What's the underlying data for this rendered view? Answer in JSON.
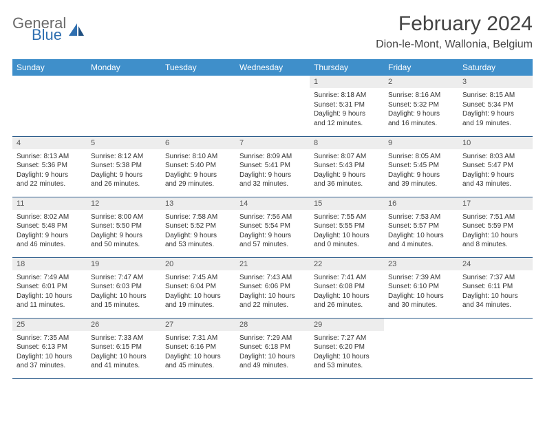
{
  "logo": {
    "general": "General",
    "blue": "Blue"
  },
  "title": "February 2024",
  "location": "Dion-le-Mont, Wallonia, Belgium",
  "colors": {
    "header_bg": "#3f8fca",
    "header_text": "#ffffff",
    "date_bg": "#ededed",
    "border": "#2a5a8a",
    "logo_gray": "#6a6a6a",
    "logo_blue": "#2f6fb0"
  },
  "day_names": [
    "Sunday",
    "Monday",
    "Tuesday",
    "Wednesday",
    "Thursday",
    "Friday",
    "Saturday"
  ],
  "weeks": [
    [
      {
        "date": "",
        "sunrise": "",
        "sunset": "",
        "daylight1": "",
        "daylight2": ""
      },
      {
        "date": "",
        "sunrise": "",
        "sunset": "",
        "daylight1": "",
        "daylight2": ""
      },
      {
        "date": "",
        "sunrise": "",
        "sunset": "",
        "daylight1": "",
        "daylight2": ""
      },
      {
        "date": "",
        "sunrise": "",
        "sunset": "",
        "daylight1": "",
        "daylight2": ""
      },
      {
        "date": "1",
        "sunrise": "Sunrise: 8:18 AM",
        "sunset": "Sunset: 5:31 PM",
        "daylight1": "Daylight: 9 hours",
        "daylight2": "and 12 minutes."
      },
      {
        "date": "2",
        "sunrise": "Sunrise: 8:16 AM",
        "sunset": "Sunset: 5:32 PM",
        "daylight1": "Daylight: 9 hours",
        "daylight2": "and 16 minutes."
      },
      {
        "date": "3",
        "sunrise": "Sunrise: 8:15 AM",
        "sunset": "Sunset: 5:34 PM",
        "daylight1": "Daylight: 9 hours",
        "daylight2": "and 19 minutes."
      }
    ],
    [
      {
        "date": "4",
        "sunrise": "Sunrise: 8:13 AM",
        "sunset": "Sunset: 5:36 PM",
        "daylight1": "Daylight: 9 hours",
        "daylight2": "and 22 minutes."
      },
      {
        "date": "5",
        "sunrise": "Sunrise: 8:12 AM",
        "sunset": "Sunset: 5:38 PM",
        "daylight1": "Daylight: 9 hours",
        "daylight2": "and 26 minutes."
      },
      {
        "date": "6",
        "sunrise": "Sunrise: 8:10 AM",
        "sunset": "Sunset: 5:40 PM",
        "daylight1": "Daylight: 9 hours",
        "daylight2": "and 29 minutes."
      },
      {
        "date": "7",
        "sunrise": "Sunrise: 8:09 AM",
        "sunset": "Sunset: 5:41 PM",
        "daylight1": "Daylight: 9 hours",
        "daylight2": "and 32 minutes."
      },
      {
        "date": "8",
        "sunrise": "Sunrise: 8:07 AM",
        "sunset": "Sunset: 5:43 PM",
        "daylight1": "Daylight: 9 hours",
        "daylight2": "and 36 minutes."
      },
      {
        "date": "9",
        "sunrise": "Sunrise: 8:05 AM",
        "sunset": "Sunset: 5:45 PM",
        "daylight1": "Daylight: 9 hours",
        "daylight2": "and 39 minutes."
      },
      {
        "date": "10",
        "sunrise": "Sunrise: 8:03 AM",
        "sunset": "Sunset: 5:47 PM",
        "daylight1": "Daylight: 9 hours",
        "daylight2": "and 43 minutes."
      }
    ],
    [
      {
        "date": "11",
        "sunrise": "Sunrise: 8:02 AM",
        "sunset": "Sunset: 5:48 PM",
        "daylight1": "Daylight: 9 hours",
        "daylight2": "and 46 minutes."
      },
      {
        "date": "12",
        "sunrise": "Sunrise: 8:00 AM",
        "sunset": "Sunset: 5:50 PM",
        "daylight1": "Daylight: 9 hours",
        "daylight2": "and 50 minutes."
      },
      {
        "date": "13",
        "sunrise": "Sunrise: 7:58 AM",
        "sunset": "Sunset: 5:52 PM",
        "daylight1": "Daylight: 9 hours",
        "daylight2": "and 53 minutes."
      },
      {
        "date": "14",
        "sunrise": "Sunrise: 7:56 AM",
        "sunset": "Sunset: 5:54 PM",
        "daylight1": "Daylight: 9 hours",
        "daylight2": "and 57 minutes."
      },
      {
        "date": "15",
        "sunrise": "Sunrise: 7:55 AM",
        "sunset": "Sunset: 5:55 PM",
        "daylight1": "Daylight: 10 hours",
        "daylight2": "and 0 minutes."
      },
      {
        "date": "16",
        "sunrise": "Sunrise: 7:53 AM",
        "sunset": "Sunset: 5:57 PM",
        "daylight1": "Daylight: 10 hours",
        "daylight2": "and 4 minutes."
      },
      {
        "date": "17",
        "sunrise": "Sunrise: 7:51 AM",
        "sunset": "Sunset: 5:59 PM",
        "daylight1": "Daylight: 10 hours",
        "daylight2": "and 8 minutes."
      }
    ],
    [
      {
        "date": "18",
        "sunrise": "Sunrise: 7:49 AM",
        "sunset": "Sunset: 6:01 PM",
        "daylight1": "Daylight: 10 hours",
        "daylight2": "and 11 minutes."
      },
      {
        "date": "19",
        "sunrise": "Sunrise: 7:47 AM",
        "sunset": "Sunset: 6:03 PM",
        "daylight1": "Daylight: 10 hours",
        "daylight2": "and 15 minutes."
      },
      {
        "date": "20",
        "sunrise": "Sunrise: 7:45 AM",
        "sunset": "Sunset: 6:04 PM",
        "daylight1": "Daylight: 10 hours",
        "daylight2": "and 19 minutes."
      },
      {
        "date": "21",
        "sunrise": "Sunrise: 7:43 AM",
        "sunset": "Sunset: 6:06 PM",
        "daylight1": "Daylight: 10 hours",
        "daylight2": "and 22 minutes."
      },
      {
        "date": "22",
        "sunrise": "Sunrise: 7:41 AM",
        "sunset": "Sunset: 6:08 PM",
        "daylight1": "Daylight: 10 hours",
        "daylight2": "and 26 minutes."
      },
      {
        "date": "23",
        "sunrise": "Sunrise: 7:39 AM",
        "sunset": "Sunset: 6:10 PM",
        "daylight1": "Daylight: 10 hours",
        "daylight2": "and 30 minutes."
      },
      {
        "date": "24",
        "sunrise": "Sunrise: 7:37 AM",
        "sunset": "Sunset: 6:11 PM",
        "daylight1": "Daylight: 10 hours",
        "daylight2": "and 34 minutes."
      }
    ],
    [
      {
        "date": "25",
        "sunrise": "Sunrise: 7:35 AM",
        "sunset": "Sunset: 6:13 PM",
        "daylight1": "Daylight: 10 hours",
        "daylight2": "and 37 minutes."
      },
      {
        "date": "26",
        "sunrise": "Sunrise: 7:33 AM",
        "sunset": "Sunset: 6:15 PM",
        "daylight1": "Daylight: 10 hours",
        "daylight2": "and 41 minutes."
      },
      {
        "date": "27",
        "sunrise": "Sunrise: 7:31 AM",
        "sunset": "Sunset: 6:16 PM",
        "daylight1": "Daylight: 10 hours",
        "daylight2": "and 45 minutes."
      },
      {
        "date": "28",
        "sunrise": "Sunrise: 7:29 AM",
        "sunset": "Sunset: 6:18 PM",
        "daylight1": "Daylight: 10 hours",
        "daylight2": "and 49 minutes."
      },
      {
        "date": "29",
        "sunrise": "Sunrise: 7:27 AM",
        "sunset": "Sunset: 6:20 PM",
        "daylight1": "Daylight: 10 hours",
        "daylight2": "and 53 minutes."
      },
      {
        "date": "",
        "sunrise": "",
        "sunset": "",
        "daylight1": "",
        "daylight2": ""
      },
      {
        "date": "",
        "sunrise": "",
        "sunset": "",
        "daylight1": "",
        "daylight2": ""
      }
    ]
  ]
}
